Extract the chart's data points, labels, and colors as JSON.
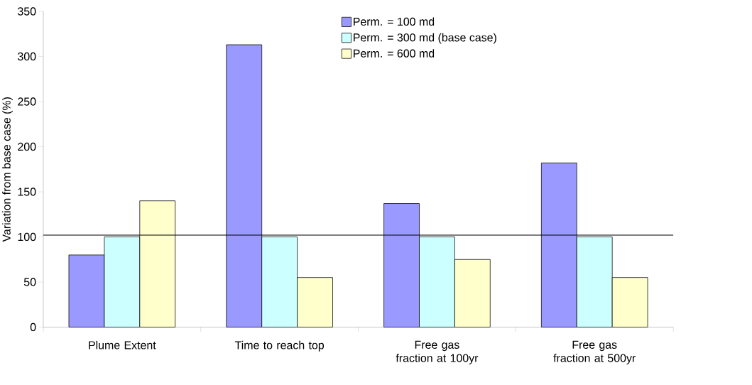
{
  "chart_data": {
    "type": "bar",
    "ylabel": "Variation from base case (%)",
    "categories": [
      "Plume Extent",
      "Time to reach top",
      "Free gas fraction at 100yr",
      "Free gas fraction at 500yr"
    ],
    "series": [
      {
        "name": "Perm. = 100 md",
        "color": "#9999ff",
        "values": [
          80,
          313,
          137,
          182
        ]
      },
      {
        "name": "Perm. = 300 md (base case)",
        "color": "#ccffff",
        "values": [
          100,
          100,
          100,
          100
        ]
      },
      {
        "name": "Perm. = 600 md",
        "color": "#ffffcc",
        "values": [
          140,
          55,
          75,
          55
        ]
      }
    ],
    "ylim": [
      0,
      350
    ],
    "yticks": [
      0,
      50,
      100,
      150,
      200,
      250,
      300,
      350
    ],
    "ref_lines": [
      {
        "axis": "y",
        "value": 102,
        "color": "#000000"
      }
    ],
    "legend": "top right"
  }
}
